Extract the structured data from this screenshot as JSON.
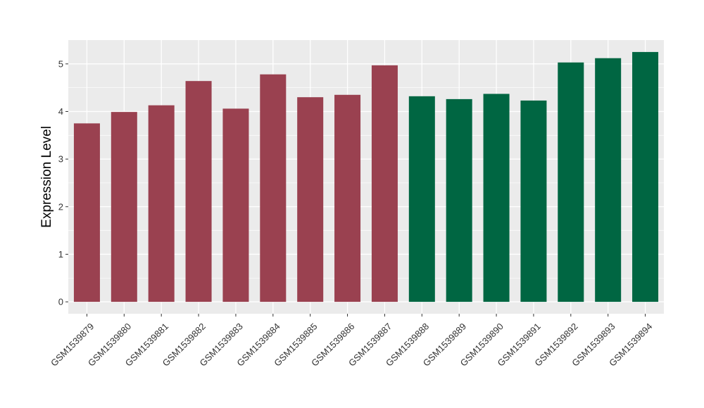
{
  "chart_data": {
    "type": "bar",
    "title": "",
    "xlabel": "",
    "ylabel": "Expression Level",
    "ylim": [
      -0.25,
      5.5
    ],
    "yticks": [
      0,
      1,
      2,
      3,
      4,
      5
    ],
    "grid": true,
    "legend": "none",
    "panel_background": "#EBEBEB",
    "categories": [
      "GSM1539879",
      "GSM1539880",
      "GSM1539881",
      "GSM1539882",
      "GSM1539883",
      "GSM1539884",
      "GSM1539885",
      "GSM1539886",
      "GSM1539887",
      "GSM1539888",
      "GSM1539889",
      "GSM1539890",
      "GSM1539891",
      "GSM1539892",
      "GSM1539893",
      "GSM1539894"
    ],
    "values": [
      3.75,
      3.99,
      4.13,
      4.64,
      4.06,
      4.78,
      4.3,
      4.35,
      4.97,
      4.32,
      4.26,
      4.37,
      4.23,
      5.03,
      5.12,
      5.25
    ],
    "bar_colors": [
      "#9A4150",
      "#9A4150",
      "#9A4150",
      "#9A4150",
      "#9A4150",
      "#9A4150",
      "#9A4150",
      "#9A4150",
      "#9A4150",
      "#006642",
      "#006642",
      "#006642",
      "#006642",
      "#006642",
      "#006642",
      "#006642"
    ]
  }
}
